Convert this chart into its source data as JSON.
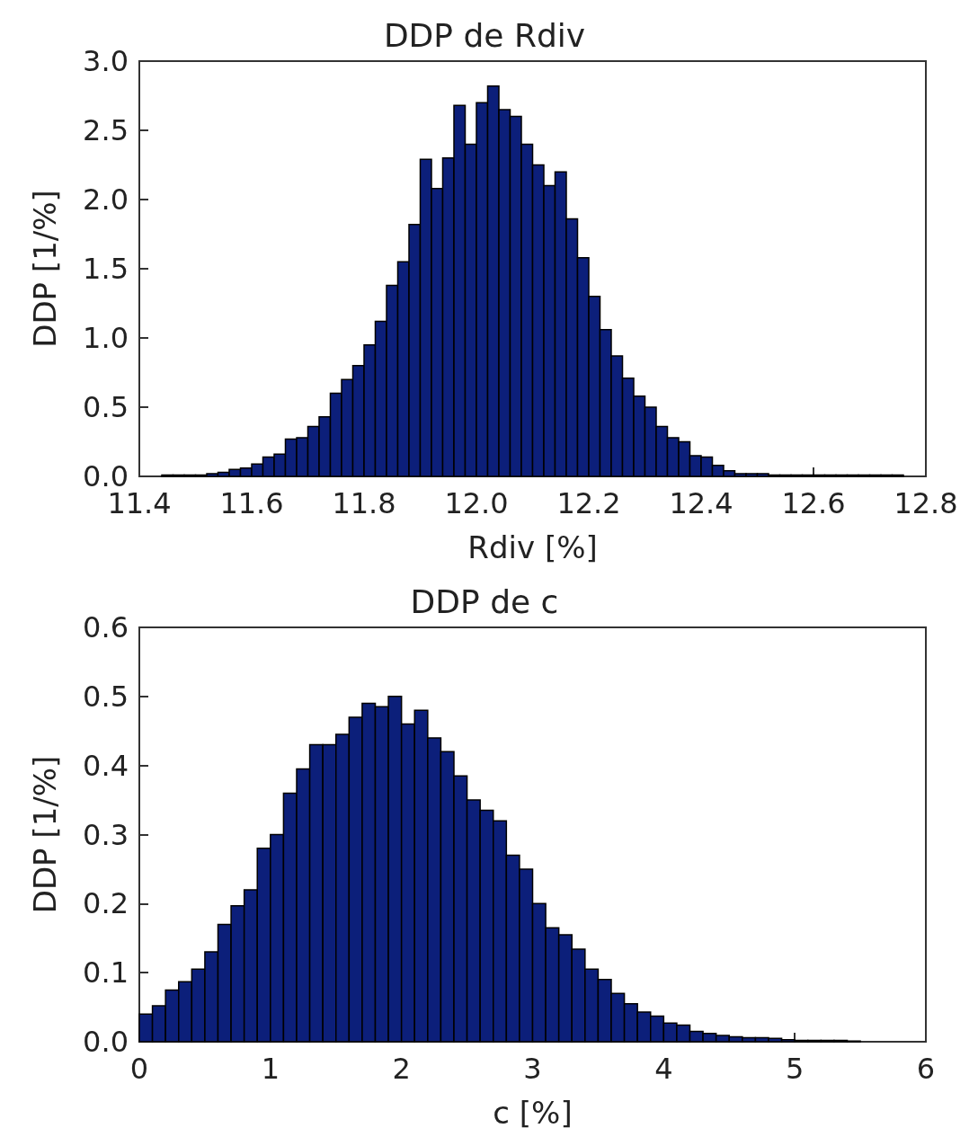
{
  "chart_data": [
    {
      "type": "histogram",
      "title": "DDP de Rdiv",
      "xlabel": "Rdiv [%]",
      "ylabel": "DDP [1/%]",
      "color": "#0c1f7a",
      "grid": false,
      "bins": [
        11.44,
        11.46,
        11.48,
        11.5,
        11.52,
        11.54,
        11.56,
        11.58,
        11.6,
        11.62,
        11.64,
        11.66,
        11.68,
        11.7,
        11.72,
        11.74,
        11.76,
        11.78,
        11.8,
        11.82,
        11.84,
        11.86,
        11.88,
        11.9,
        11.92,
        11.94,
        11.96,
        11.98,
        12.0,
        12.02,
        12.04,
        12.06,
        12.08,
        12.1,
        12.12,
        12.14,
        12.16,
        12.18,
        12.2,
        12.22,
        12.24,
        12.26,
        12.28,
        12.3,
        12.32,
        12.34,
        12.36,
        12.38,
        12.4,
        12.42,
        12.44,
        12.46,
        12.48,
        12.5,
        12.52,
        12.54,
        12.56,
        12.58,
        12.6,
        12.62,
        12.64,
        12.66,
        12.68,
        12.7,
        12.72,
        12.74,
        12.76
      ],
      "values": [
        0.01,
        0.01,
        0.01,
        0.01,
        0.02,
        0.03,
        0.05,
        0.06,
        0.09,
        0.14,
        0.16,
        0.27,
        0.28,
        0.36,
        0.43,
        0.6,
        0.7,
        0.8,
        0.95,
        1.12,
        1.38,
        1.55,
        1.82,
        2.29,
        2.08,
        2.3,
        2.68,
        2.4,
        2.7,
        2.82,
        2.65,
        2.6,
        2.4,
        2.25,
        2.1,
        2.2,
        1.86,
        1.58,
        1.3,
        1.06,
        0.87,
        0.71,
        0.58,
        0.5,
        0.36,
        0.28,
        0.25,
        0.15,
        0.14,
        0.08,
        0.04,
        0.02,
        0.02,
        0.02,
        0.01,
        0.01,
        0.01,
        0.01,
        0.01,
        0.01,
        0.01,
        0.01,
        0.01,
        0.01,
        0.01,
        0.01
      ],
      "xlim": [
        11.4,
        12.8
      ],
      "xticks": [
        11.4,
        11.6,
        11.8,
        {
          "value": 12.0,
          "label": "12.0"
        },
        12.2,
        12.4,
        12.6,
        12.8
      ],
      "ylim": [
        0,
        3.0
      ],
      "yticks": [
        {
          "value": 0,
          "label": "0.0"
        },
        0.5,
        {
          "value": 1.0,
          "label": "1.0"
        },
        1.5,
        {
          "value": 2.0,
          "label": "2.0"
        },
        2.5,
        {
          "value": 3.0,
          "label": "3.0"
        }
      ]
    },
    {
      "type": "histogram",
      "title": "DDP de c",
      "xlabel": "c [%]",
      "ylabel": "DDP [1/%]",
      "color": "#0c1f7a",
      "grid": false,
      "bins": [
        0,
        0.1,
        0.2,
        0.3,
        0.4,
        0.5,
        0.6,
        0.7,
        0.8,
        0.9,
        1.0,
        1.1,
        1.2,
        1.3,
        1.4,
        1.5,
        1.6,
        1.7,
        1.8,
        1.9,
        2.0,
        2.1,
        2.2,
        2.3,
        2.4,
        2.5,
        2.6,
        2.7,
        2.8,
        2.9,
        3.0,
        3.1,
        3.2,
        3.3,
        3.4,
        3.5,
        3.6,
        3.7,
        3.8,
        3.9,
        4.0,
        4.1,
        4.2,
        4.3,
        4.4,
        4.5,
        4.6,
        4.7,
        4.8,
        4.9,
        5.0,
        5.1,
        5.2,
        5.3,
        5.4,
        5.5
      ],
      "values": [
        0.04,
        0.052,
        0.075,
        0.087,
        0.105,
        0.13,
        0.17,
        0.197,
        0.22,
        0.28,
        0.3,
        0.36,
        0.395,
        0.43,
        0.43,
        0.445,
        0.47,
        0.49,
        0.485,
        0.5,
        0.46,
        0.48,
        0.44,
        0.42,
        0.385,
        0.35,
        0.335,
        0.32,
        0.27,
        0.25,
        0.2,
        0.165,
        0.155,
        0.134,
        0.105,
        0.09,
        0.07,
        0.055,
        0.043,
        0.037,
        0.027,
        0.024,
        0.015,
        0.012,
        0.009,
        0.007,
        0.006,
        0.006,
        0.005,
        0.003,
        0.002,
        0.002,
        0.002,
        0.002,
        0.001
      ],
      "xlim": [
        0,
        6
      ],
      "xticks": [
        0,
        1,
        2,
        3,
        4,
        5,
        6
      ],
      "ylim": [
        0,
        0.6
      ],
      "yticks": [
        {
          "value": 0,
          "label": "0.0"
        },
        0.1,
        0.2,
        0.3,
        0.4,
        0.5,
        0.6
      ]
    }
  ]
}
